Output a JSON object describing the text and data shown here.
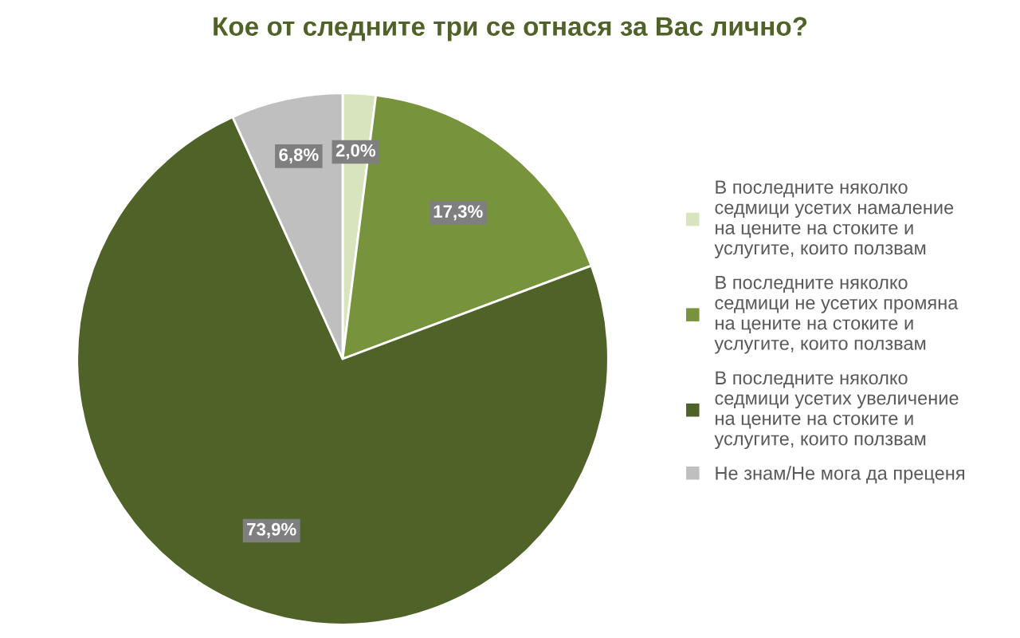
{
  "chart_data": {
    "type": "pie",
    "title": "Кое от следните три се отнася за Вас лично?",
    "categories": [
      "В последните няколко седмици усетих намаление на цените на стоките и услугите, които ползвам",
      "В последните няколко седмици не усетих промяна на цените на стоките и услугите, които ползвам",
      "В последните няколко седмици усетих увеличение на цените на стоките и услугите, които ползвам",
      "Не знам/Не мога да преценя"
    ],
    "values": [
      2.0,
      17.3,
      73.9,
      6.8
    ],
    "value_labels": [
      "2,0%",
      "17,3%",
      "73,9%",
      "6,8%"
    ],
    "colors": [
      "#d7e4bd",
      "#77933c",
      "#4f6228",
      "#bfbfbf"
    ],
    "legend": "right"
  }
}
